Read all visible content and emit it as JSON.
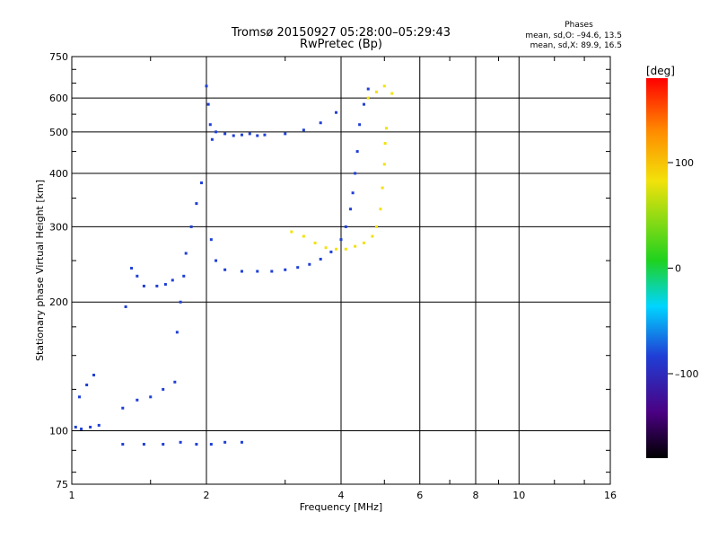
{
  "chart_data": {
    "type": "scatter",
    "title": "Tromsø 20150927 05:28:00–05:29:43",
    "subtitle": "RwPretec (Bp)",
    "xlabel": "Frequency [MHz]",
    "ylabel": "Stationary phase Virtual Height [km]",
    "x_scale": "log",
    "y_scale": "log",
    "xlim": [
      1,
      16
    ],
    "ylim": [
      75,
      750
    ],
    "x_ticks": [
      1,
      2,
      4,
      6,
      8,
      10,
      16
    ],
    "x_tick_labels": [
      "1",
      "2",
      "4",
      "6",
      "8",
      "10",
      "16"
    ],
    "y_ticks": [
      75,
      100,
      200,
      300,
      400,
      500,
      600,
      750
    ],
    "y_tick_labels": [
      "75",
      "100",
      "200",
      "300",
      "400",
      "500",
      "600",
      "750"
    ],
    "grid": true,
    "colorbar": {
      "label": "[deg]",
      "min": -180,
      "max": 180,
      "ticks": [
        100,
        0,
        -100
      ],
      "tick_labels": [
        "100",
        "0",
        "–100"
      ]
    },
    "legend": {
      "title": "Phases",
      "lines": [
        "mean, sd,O: –94.6, 13.5",
        "mean, sd,X:  89.9, 16.5"
      ]
    },
    "series": [
      {
        "trace": "O-mode trace",
        "points": [
          [
            1.02,
            102
          ],
          [
            1.05,
            101
          ],
          [
            1.1,
            102
          ],
          [
            1.15,
            103
          ],
          [
            1.04,
            120
          ],
          [
            1.08,
            128
          ],
          [
            1.12,
            135
          ],
          [
            1.3,
            93
          ],
          [
            1.45,
            93
          ],
          [
            1.6,
            93
          ],
          [
            1.75,
            94
          ],
          [
            1.9,
            93
          ],
          [
            2.05,
            93
          ],
          [
            2.2,
            94
          ],
          [
            2.4,
            94
          ],
          [
            1.32,
            195
          ],
          [
            1.36,
            240
          ],
          [
            1.4,
            230
          ],
          [
            1.45,
            218
          ],
          [
            1.55,
            218
          ],
          [
            1.62,
            220
          ],
          [
            1.68,
            225
          ],
          [
            1.3,
            113
          ],
          [
            1.4,
            118
          ],
          [
            1.5,
            120
          ],
          [
            1.6,
            125
          ],
          [
            1.7,
            130
          ],
          [
            1.72,
            170
          ],
          [
            1.75,
            200
          ],
          [
            1.78,
            230
          ],
          [
            1.8,
            260
          ],
          [
            1.85,
            300
          ],
          [
            1.9,
            340
          ],
          [
            1.95,
            380
          ],
          [
            2.0,
            640
          ],
          [
            2.02,
            580
          ],
          [
            2.04,
            520
          ],
          [
            2.06,
            480
          ],
          [
            2.1,
            500
          ],
          [
            2.2,
            495
          ],
          [
            2.3,
            490
          ],
          [
            2.4,
            492
          ],
          [
            2.5,
            495
          ],
          [
            2.6,
            490
          ],
          [
            2.7,
            492
          ],
          [
            2.05,
            280
          ],
          [
            2.1,
            250
          ],
          [
            2.2,
            238
          ],
          [
            2.4,
            236
          ],
          [
            2.6,
            236
          ],
          [
            2.8,
            236
          ],
          [
            3.0,
            238
          ],
          [
            3.2,
            241
          ],
          [
            3.4,
            245
          ],
          [
            3.6,
            252
          ],
          [
            3.8,
            262
          ],
          [
            4.0,
            280
          ],
          [
            4.1,
            300
          ],
          [
            4.2,
            330
          ],
          [
            4.25,
            360
          ],
          [
            4.3,
            400
          ],
          [
            4.35,
            450
          ],
          [
            4.4,
            520
          ],
          [
            4.5,
            580
          ],
          [
            4.6,
            630
          ],
          [
            3.0,
            495
          ],
          [
            3.3,
            505
          ],
          [
            3.6,
            525
          ],
          [
            3.9,
            555
          ]
        ],
        "color": "#1f3fd6"
      },
      {
        "trace": "X-mode trace",
        "points": [
          [
            3.1,
            292
          ],
          [
            3.3,
            285
          ],
          [
            3.5,
            275
          ],
          [
            3.7,
            268
          ],
          [
            3.9,
            266
          ],
          [
            4.1,
            266
          ],
          [
            4.3,
            270
          ],
          [
            4.5,
            275
          ],
          [
            4.7,
            285
          ],
          [
            4.8,
            300
          ],
          [
            4.9,
            330
          ],
          [
            4.95,
            370
          ],
          [
            5.0,
            420
          ],
          [
            5.02,
            470
          ],
          [
            5.05,
            510
          ],
          [
            4.6,
            600
          ],
          [
            4.8,
            620
          ],
          [
            5.0,
            640
          ],
          [
            5.2,
            615
          ]
        ],
        "color": "#f2e20a"
      }
    ]
  }
}
